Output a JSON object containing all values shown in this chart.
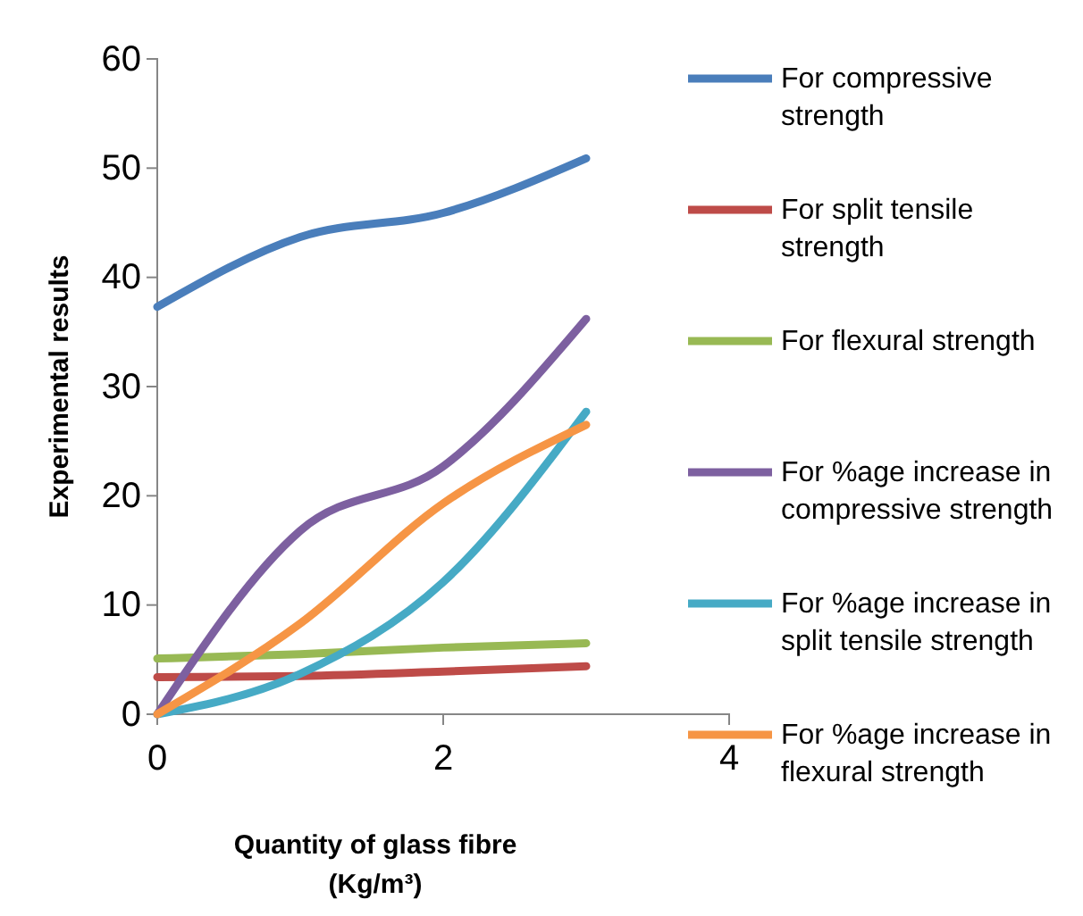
{
  "chart_data": {
    "type": "line",
    "xlabel": "Quantity of glass fibre\n(Kg/m³)",
    "ylabel": "Experimental results",
    "xlim": [
      0,
      4
    ],
    "xticks": [
      0,
      2,
      4
    ],
    "ylim": [
      0,
      60
    ],
    "yticks": [
      0,
      10,
      20,
      30,
      40,
      50,
      60
    ],
    "x": [
      0,
      1,
      2,
      3
    ],
    "legend": "right",
    "grid": false,
    "marker": "none",
    "line_style": "solid",
    "series": [
      {
        "name": "For compressive strength",
        "color": "#4a7ebb",
        "values": [
          37.3,
          43.7,
          45.9,
          50.9
        ]
      },
      {
        "name": "For split tensile strength",
        "color": "#be4b48",
        "values": [
          3.4,
          3.5,
          3.9,
          4.4
        ]
      },
      {
        "name": "For flexural strength",
        "color": "#98b954",
        "values": [
          5.1,
          5.5,
          6.1,
          6.5
        ]
      },
      {
        "name": "For %age increase in compressive strength",
        "color": "#7d60a0",
        "values": [
          0,
          16.8,
          22.7,
          36.2
        ]
      },
      {
        "name": "For %age increase in split tensile strength",
        "color": "#46aac5",
        "values": [
          0,
          3.7,
          12.1,
          27.7
        ]
      },
      {
        "name": "For %age increase in flexural strength",
        "color": "#f69545",
        "values": [
          0,
          8.3,
          19.3,
          26.5
        ]
      }
    ]
  }
}
